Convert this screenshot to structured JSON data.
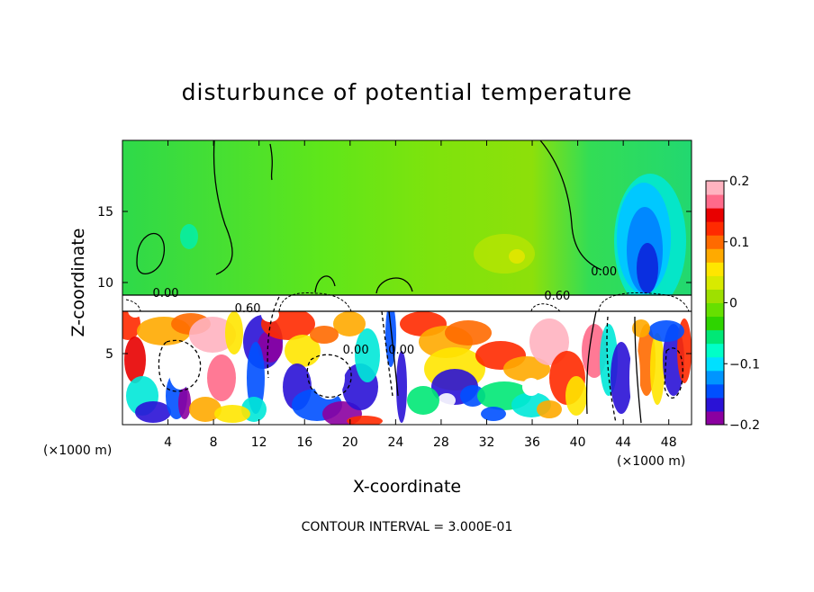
{
  "chart_data": {
    "type": "heatmap",
    "title": "disturbunce of potential temperature",
    "xlabel": "X-coordinate",
    "ylabel": "Z-coordinate",
    "x_unit": "(×1000 m)",
    "x_unit_right": "(×1000 m)",
    "xlim": [
      0,
      50
    ],
    "ylim": [
      0,
      20
    ],
    "x_ticks": [
      4,
      8,
      12,
      16,
      20,
      24,
      28,
      32,
      36,
      40,
      44,
      48
    ],
    "x_tick_labels": [
      "4",
      "8",
      "12",
      "16",
      "20",
      "24",
      "28",
      "32",
      "36",
      "40",
      "44",
      "48"
    ],
    "y_ticks": [
      5,
      10,
      15
    ],
    "y_tick_labels": [
      "5",
      "10",
      "15"
    ],
    "colorbar": {
      "range": [
        -0.2,
        0.2
      ],
      "ticks": [
        0.2,
        0.1,
        0,
        -0.1,
        -0.2
      ],
      "tick_labels": [
        "0.2",
        "0.1",
        "0",
        "−0.1",
        "−0.2"
      ],
      "colors": [
        "#8b00a0",
        "#2a12d6",
        "#0050ff",
        "#0095ff",
        "#00e0ff",
        "#00ffc8",
        "#00e876",
        "#2ed400",
        "#66e000",
        "#9ee000",
        "#d8ea00",
        "#ffe600",
        "#ffaa00",
        "#ff6a00",
        "#ff2a00",
        "#e80000",
        "#ff6a8a",
        "#ffb3c0"
      ]
    },
    "contour_labels": [
      {
        "text": "0.00",
        "x": 3.8,
        "z": 9.0
      },
      {
        "text": "0.60",
        "x": 11.0,
        "z": 7.9
      },
      {
        "text": "0.00",
        "x": 20.5,
        "z": 5.0
      },
      {
        "text": "0.00",
        "x": 24.5,
        "z": 5.0
      },
      {
        "text": "0.60",
        "x": 38.2,
        "z": 8.8
      },
      {
        "text": "0.00",
        "x": 42.3,
        "z": 10.5
      }
    ],
    "contour_interval_text": "CONTOUR INTERVAL = 3.000E-01",
    "grid": false,
    "legend": "colorbar-right"
  }
}
